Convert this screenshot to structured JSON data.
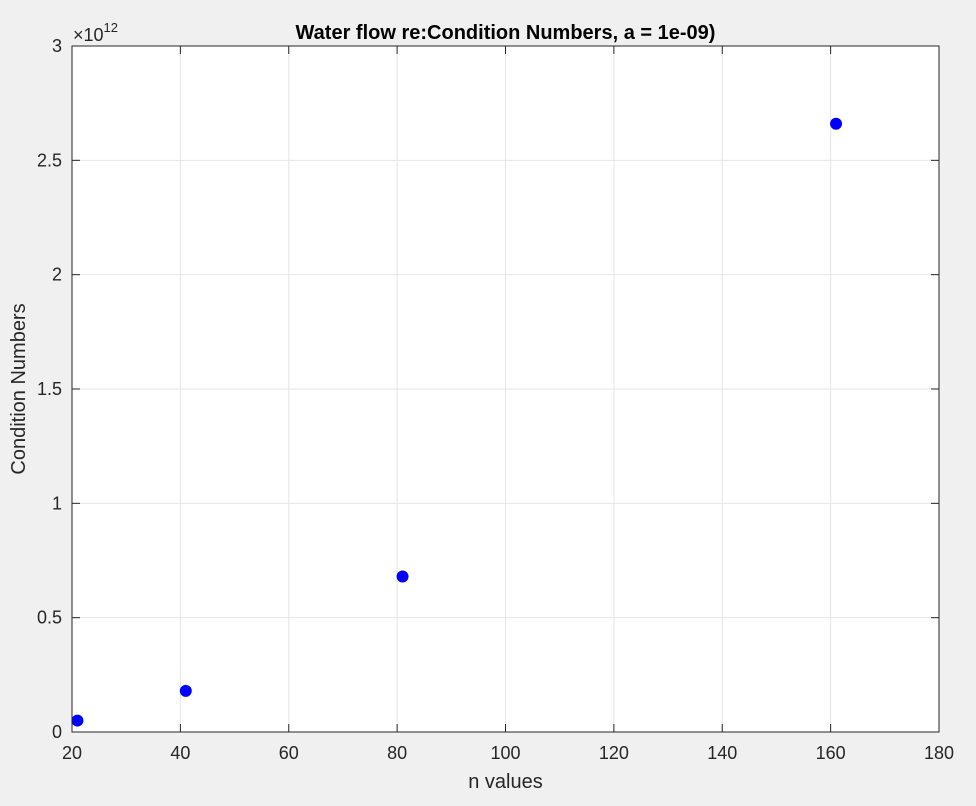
{
  "chart_data": {
    "type": "scatter",
    "title": "Water flow re:Condition Numbers, a = 1e-09)",
    "xlabel": "n values",
    "ylabel": "Condition Numbers",
    "xlim": [
      20,
      180
    ],
    "ylim": [
      0,
      3
    ],
    "y_exponent": "12",
    "y_multiplier_symbol": "×10",
    "xticks": [
      "20",
      "40",
      "60",
      "80",
      "100",
      "120",
      "140",
      "160",
      "180"
    ],
    "yticks": [
      "0",
      "0.5",
      "1",
      "1.5",
      "2",
      "2.5",
      "3"
    ],
    "grid": true,
    "colors": {
      "marker": "#0000ff",
      "grid": "#e6e6e6",
      "axes": "#262626"
    },
    "series": [
      {
        "x": [
          21,
          41,
          81,
          161
        ],
        "y": [
          0.05,
          0.18,
          0.68,
          2.66
        ]
      }
    ]
  }
}
